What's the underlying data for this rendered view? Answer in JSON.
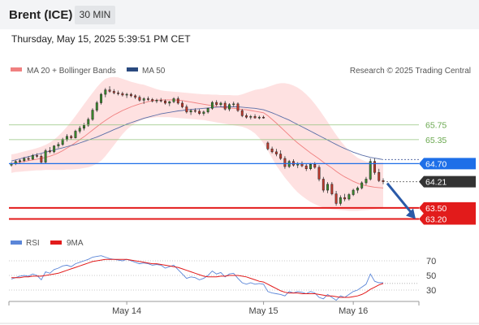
{
  "header": {
    "instrument": "Brent (ICE)",
    "timeframe": "30 MIN",
    "datetime": "Thursday, May 15, 2025 5:39:51 PM CET"
  },
  "legend": {
    "ma20_bb": "MA 20 + Bollinger Bands",
    "ma50": "MA 50",
    "copyright": "Research © 2025 Trading Central",
    "rsi": "RSI",
    "rsi_ma": "9MA"
  },
  "colors": {
    "ma20": "#f08080",
    "bollinger_fill": "#fdd7d7",
    "ma50": "#5b6fa8",
    "resistance": "#93c47d",
    "pivot": "#1e6fe8",
    "support": "#e21b1b",
    "last_price": "#333333",
    "rsi": "#5b86d8",
    "rsi_ma": "#e21b1b",
    "arrow": "#2a5aa8"
  },
  "levels": {
    "resistance": [
      65.75,
      65.35
    ],
    "pivot": 64.7,
    "last": 64.21,
    "support": [
      63.5,
      63.2
    ]
  },
  "level_labels": {
    "r1": "65.75",
    "r2": "65.35",
    "pivot": "64.70",
    "last": "64.21",
    "s1": "63.50",
    "s2": "63.20"
  },
  "xaxis": [
    "May 14",
    "May 15",
    "May 16"
  ],
  "rsi_axis": [
    "70",
    "50",
    "30"
  ],
  "chart_data": {
    "type": "candlestick",
    "title": "",
    "price_range": [
      63.1,
      67.0
    ],
    "rsi_range": [
      20,
      80
    ],
    "candles": [
      [
        64.66,
        64.74,
        64.62,
        64.7
      ],
      [
        64.7,
        64.8,
        64.66,
        64.76
      ],
      [
        64.76,
        64.82,
        64.7,
        64.78
      ],
      [
        64.78,
        64.88,
        64.74,
        64.84
      ],
      [
        64.84,
        64.9,
        64.78,
        64.82
      ],
      [
        64.82,
        64.96,
        64.8,
        64.92
      ],
      [
        64.92,
        64.98,
        64.86,
        64.9
      ],
      [
        64.9,
        64.96,
        64.7,
        64.74
      ],
      [
        64.74,
        65.1,
        64.7,
        65.05
      ],
      [
        65.05,
        65.15,
        64.98,
        65.02
      ],
      [
        65.02,
        65.2,
        64.98,
        65.18
      ],
      [
        65.18,
        65.28,
        65.12,
        65.22
      ],
      [
        65.22,
        65.4,
        65.18,
        65.36
      ],
      [
        65.36,
        65.5,
        65.3,
        65.44
      ],
      [
        65.44,
        65.48,
        65.36,
        65.4
      ],
      [
        65.4,
        65.62,
        65.38,
        65.58
      ],
      [
        65.58,
        65.72,
        65.52,
        65.66
      ],
      [
        65.66,
        65.8,
        65.6,
        65.74
      ],
      [
        65.74,
        65.95,
        65.7,
        65.9
      ],
      [
        65.9,
        66.2,
        65.86,
        66.15
      ],
      [
        66.15,
        66.4,
        66.1,
        66.35
      ],
      [
        66.35,
        66.62,
        66.3,
        66.58
      ],
      [
        66.58,
        66.75,
        66.5,
        66.7
      ],
      [
        66.7,
        66.8,
        66.62,
        66.66
      ],
      [
        66.66,
        66.72,
        66.58,
        66.62
      ],
      [
        66.62,
        66.68,
        66.55,
        66.6
      ],
      [
        66.6,
        66.65,
        66.52,
        66.56
      ],
      [
        66.56,
        66.62,
        66.48,
        66.58
      ],
      [
        66.58,
        66.62,
        66.5,
        66.54
      ],
      [
        66.54,
        66.58,
        66.45,
        66.5
      ],
      [
        66.5,
        66.55,
        66.38,
        66.42
      ],
      [
        66.42,
        66.5,
        66.32,
        66.46
      ],
      [
        66.46,
        66.52,
        66.4,
        66.44
      ],
      [
        66.44,
        66.48,
        66.36,
        66.4
      ],
      [
        66.4,
        66.46,
        66.34,
        66.42
      ],
      [
        66.42,
        66.48,
        66.36,
        66.4
      ],
      [
        66.4,
        66.44,
        66.3,
        66.34
      ],
      [
        66.34,
        66.4,
        66.26,
        66.38
      ],
      [
        66.38,
        66.5,
        66.34,
        66.46
      ],
      [
        66.46,
        66.52,
        66.3,
        66.34
      ],
      [
        66.34,
        66.4,
        66.2,
        66.24
      ],
      [
        66.24,
        66.3,
        66.06,
        66.1
      ],
      [
        66.1,
        66.18,
        66.02,
        66.14
      ],
      [
        66.14,
        66.2,
        66.08,
        66.12
      ],
      [
        66.12,
        66.18,
        66.02,
        66.06
      ],
      [
        66.06,
        66.14,
        66.0,
        66.1
      ],
      [
        66.1,
        66.22,
        66.06,
        66.2
      ],
      [
        66.2,
        66.4,
        66.16,
        66.36
      ],
      [
        66.36,
        66.42,
        66.26,
        66.3
      ],
      [
        66.3,
        66.38,
        66.24,
        66.34
      ],
      [
        66.34,
        66.4,
        66.14,
        66.18
      ],
      [
        66.18,
        66.34,
        66.12,
        66.3
      ],
      [
        66.3,
        66.38,
        66.24,
        66.32
      ],
      [
        66.32,
        66.36,
        66.1,
        66.14
      ],
      [
        66.14,
        66.18,
        65.96,
        66.0
      ],
      [
        66.0,
        66.06,
        65.92,
        65.96
      ],
      [
        65.96,
        66.02,
        65.9,
        65.98
      ],
      [
        65.98,
        66.04,
        65.92,
        65.94
      ],
      [
        65.94,
        66.0,
        65.9,
        65.96
      ],
      [
        65.96,
        66.0,
        65.92,
        65.95
      ],
      [
        65.26,
        65.3,
        65.06,
        65.1
      ],
      [
        65.1,
        65.16,
        64.98,
        65.02
      ],
      [
        65.02,
        65.1,
        64.9,
        64.96
      ],
      [
        64.96,
        65.06,
        64.8,
        64.84
      ],
      [
        64.84,
        64.9,
        64.56,
        64.62
      ],
      [
        64.62,
        64.8,
        64.58,
        64.76
      ],
      [
        64.76,
        64.82,
        64.62,
        64.66
      ],
      [
        64.66,
        64.74,
        64.58,
        64.7
      ],
      [
        64.7,
        64.76,
        64.6,
        64.64
      ],
      [
        64.64,
        64.7,
        64.5,
        64.56
      ],
      [
        64.56,
        64.72,
        64.52,
        64.68
      ],
      [
        64.68,
        64.74,
        64.56,
        64.6
      ],
      [
        64.6,
        64.66,
        64.22,
        64.28
      ],
      [
        64.28,
        64.34,
        63.92,
        63.98
      ],
      [
        63.98,
        64.2,
        63.9,
        64.14
      ],
      [
        64.14,
        64.2,
        63.84,
        63.88
      ],
      [
        63.88,
        63.96,
        63.56,
        63.62
      ],
      [
        63.62,
        63.84,
        63.56,
        63.78
      ],
      [
        63.78,
        63.88,
        63.68,
        63.74
      ],
      [
        63.74,
        63.9,
        63.7,
        63.86
      ],
      [
        63.86,
        64.02,
        63.82,
        63.98
      ],
      [
        63.98,
        64.08,
        63.9,
        64.04
      ],
      [
        64.04,
        64.22,
        64.0,
        64.18
      ],
      [
        64.18,
        64.34,
        64.12,
        64.28
      ],
      [
        64.28,
        64.84,
        64.24,
        64.76
      ],
      [
        64.76,
        64.84,
        64.4,
        64.46
      ],
      [
        64.46,
        64.56,
        64.2,
        64.24
      ],
      [
        64.24,
        64.3,
        64.14,
        64.21
      ]
    ],
    "ma20": [
      64.7,
      64.72,
      64.74,
      64.76,
      64.78,
      64.8,
      64.82,
      64.84,
      64.87,
      64.9,
      64.94,
      64.99,
      65.05,
      65.12,
      65.19,
      65.27,
      65.35,
      65.43,
      65.52,
      65.61,
      65.7,
      65.79,
      65.87,
      65.95,
      66.02,
      66.08,
      66.14,
      66.19,
      66.24,
      66.28,
      66.32,
      66.35,
      66.38,
      66.4,
      66.42,
      66.43,
      66.43,
      66.43,
      66.43,
      66.42,
      66.41,
      66.39,
      66.37,
      66.35,
      66.33,
      66.31,
      66.29,
      66.27,
      66.25,
      66.23,
      66.22,
      66.21,
      66.2,
      66.19,
      66.17,
      66.16,
      66.14,
      66.12,
      66.1,
      66.08,
      66.0,
      65.9,
      65.8,
      65.69,
      65.58,
      65.47,
      65.36,
      65.26,
      65.17,
      65.08,
      64.99,
      64.91,
      64.83,
      64.74,
      64.66,
      64.58,
      64.49,
      64.41,
      64.34,
      64.28,
      64.22,
      64.17,
      64.13,
      64.1,
      64.08,
      64.06,
      64.05,
      64.04
    ],
    "bb_upper": [
      64.95,
      64.97,
      65.0,
      65.03,
      65.06,
      65.09,
      65.12,
      65.16,
      65.21,
      65.27,
      65.35,
      65.45,
      65.57,
      65.7,
      65.84,
      65.99,
      66.15,
      66.31,
      66.47,
      66.62,
      66.77,
      66.9,
      67.0,
      67.04,
      67.05,
      67.04,
      67.0,
      66.96,
      66.92,
      66.89,
      66.86,
      66.84,
      66.8,
      66.76,
      66.72,
      66.69,
      66.67,
      66.66,
      66.65,
      66.64,
      66.63,
      66.62,
      66.61,
      66.6,
      66.59,
      66.58,
      66.58,
      66.57,
      66.57,
      66.56,
      66.56,
      66.56,
      66.55,
      66.55,
      66.58,
      66.62,
      66.66,
      66.7,
      66.72,
      66.74,
      66.78,
      66.82,
      66.86,
      66.88,
      66.88,
      66.86,
      66.82,
      66.76,
      66.68,
      66.58,
      66.46,
      66.32,
      66.17,
      66.0,
      65.83,
      65.65,
      65.48,
      65.32,
      65.18,
      65.05,
      64.95,
      64.86,
      64.8,
      64.76,
      64.74,
      64.73,
      64.73,
      64.73
    ],
    "bb_lower": [
      64.45,
      64.47,
      64.48,
      64.49,
      64.5,
      64.51,
      64.52,
      64.52,
      64.53,
      64.53,
      64.53,
      64.53,
      64.53,
      64.54,
      64.54,
      64.55,
      64.56,
      64.58,
      64.6,
      64.64,
      64.7,
      64.78,
      64.9,
      65.05,
      65.2,
      65.35,
      65.5,
      65.62,
      65.72,
      65.8,
      65.86,
      65.9,
      65.93,
      65.95,
      65.96,
      65.96,
      65.96,
      65.96,
      65.95,
      65.94,
      65.93,
      65.92,
      65.91,
      65.9,
      65.89,
      65.88,
      65.86,
      65.84,
      65.82,
      65.8,
      65.78,
      65.76,
      65.74,
      65.72,
      65.7,
      65.66,
      65.6,
      65.52,
      65.4,
      65.25,
      65.05,
      64.85,
      64.65,
      64.48,
      64.32,
      64.18,
      64.04,
      63.92,
      63.82,
      63.74,
      63.66,
      63.6,
      63.55,
      63.51,
      63.48,
      63.46,
      63.45,
      63.44,
      63.43,
      63.42,
      63.42,
      63.42,
      63.43,
      63.44,
      63.45,
      63.46,
      63.47,
      63.48
    ],
    "ma50": [
      64.77,
      64.8,
      64.83,
      64.86,
      64.89,
      64.92,
      64.95,
      64.98,
      65.01,
      65.04,
      65.07,
      65.1,
      65.13,
      65.16,
      65.19,
      65.22,
      65.26,
      65.3,
      65.34,
      65.38,
      65.42,
      65.47,
      65.52,
      65.57,
      65.62,
      65.67,
      65.72,
      65.77,
      65.81,
      65.85,
      65.89,
      65.93,
      65.96,
      65.99,
      66.02,
      66.05,
      66.07,
      66.09,
      66.11,
      66.13,
      66.14,
      66.16,
      66.17,
      66.18,
      66.19,
      66.2,
      66.21,
      66.22,
      66.23,
      66.24,
      66.24,
      66.24,
      66.24,
      66.24,
      66.23,
      66.22,
      66.21,
      66.2,
      66.18,
      66.16,
      66.12,
      66.08,
      66.03,
      65.98,
      65.93,
      65.88,
      65.82,
      65.76,
      65.7,
      65.64,
      65.58,
      65.52,
      65.46,
      65.4,
      65.34,
      65.28,
      65.22,
      65.16,
      65.11,
      65.06,
      65.01,
      64.97,
      64.93,
      64.9,
      64.87,
      64.85,
      64.83,
      64.81
    ],
    "rsi": [
      45,
      47,
      49,
      50,
      49,
      52,
      50,
      44,
      55,
      53,
      58,
      60,
      63,
      64,
      62,
      66,
      68,
      70,
      72,
      75,
      76,
      77,
      75,
      73,
      72,
      71,
      70,
      72,
      70,
      68,
      66,
      67,
      66,
      64,
      65,
      64,
      60,
      62,
      64,
      58,
      52,
      46,
      48,
      47,
      44,
      46,
      50,
      56,
      52,
      54,
      48,
      52,
      53,
      46,
      40,
      38,
      40,
      38,
      39,
      38,
      28,
      26,
      25,
      24,
      22,
      28,
      26,
      28,
      27,
      25,
      28,
      26,
      20,
      18,
      24,
      20,
      16,
      22,
      20,
      24,
      28,
      30,
      34,
      38,
      52,
      42,
      40,
      40
    ],
    "rsi_ma": [
      47,
      47,
      47,
      48,
      48,
      49,
      49,
      49,
      50,
      51,
      52,
      53,
      55,
      57,
      59,
      61,
      63,
      65,
      67,
      69,
      70,
      71,
      72,
      72,
      72,
      72,
      72,
      72,
      71,
      70,
      69,
      68,
      67,
      66,
      66,
      65,
      64,
      63,
      62,
      61,
      59,
      57,
      55,
      53,
      51,
      49,
      48,
      48,
      48,
      49,
      49,
      50,
      50,
      50,
      49,
      48,
      46,
      44,
      42,
      41,
      38,
      35,
      32,
      29,
      27,
      26,
      26,
      26,
      25,
      25,
      25,
      25,
      24,
      23,
      22,
      22,
      21,
      20,
      20,
      20,
      21,
      22,
      24,
      27,
      31,
      34,
      37,
      39
    ],
    "x_labels": [
      "May 14",
      "May 15",
      "May 16"
    ],
    "x_label_index": [
      27,
      59,
      80
    ],
    "annotation": "projected move to 63.20"
  }
}
